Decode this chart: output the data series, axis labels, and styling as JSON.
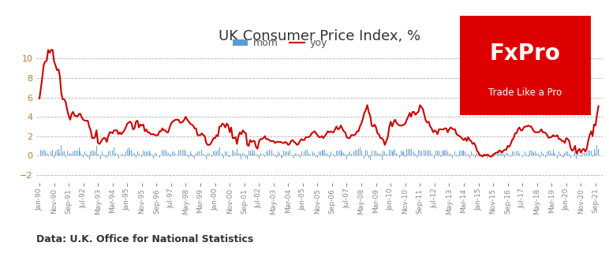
{
  "title": "UK Consumer Price Index, %",
  "yticks": [
    -2.0,
    0.0,
    2.0,
    4.0,
    6.0,
    8.0,
    10.0
  ],
  "ymin": -2.8,
  "ymax": 11.2,
  "mom_color": "#5b9bd5",
  "yoy_color": "#cc0000",
  "background_color": "#ffffff",
  "grid_color": "#b0b0b0",
  "annotation": "Data: U.K. Office for National Statistics",
  "fxpro_bg": "#dd0000",
  "fxpro_text1": "FxPro",
  "fxpro_text2": "Trade Like a Pro",
  "legend_mom": "mom",
  "legend_yoy": "yoy",
  "title_fontsize": 13,
  "annotation_fontsize": 9,
  "ytick_color": "#c07830",
  "tick_label_color": "#888888"
}
